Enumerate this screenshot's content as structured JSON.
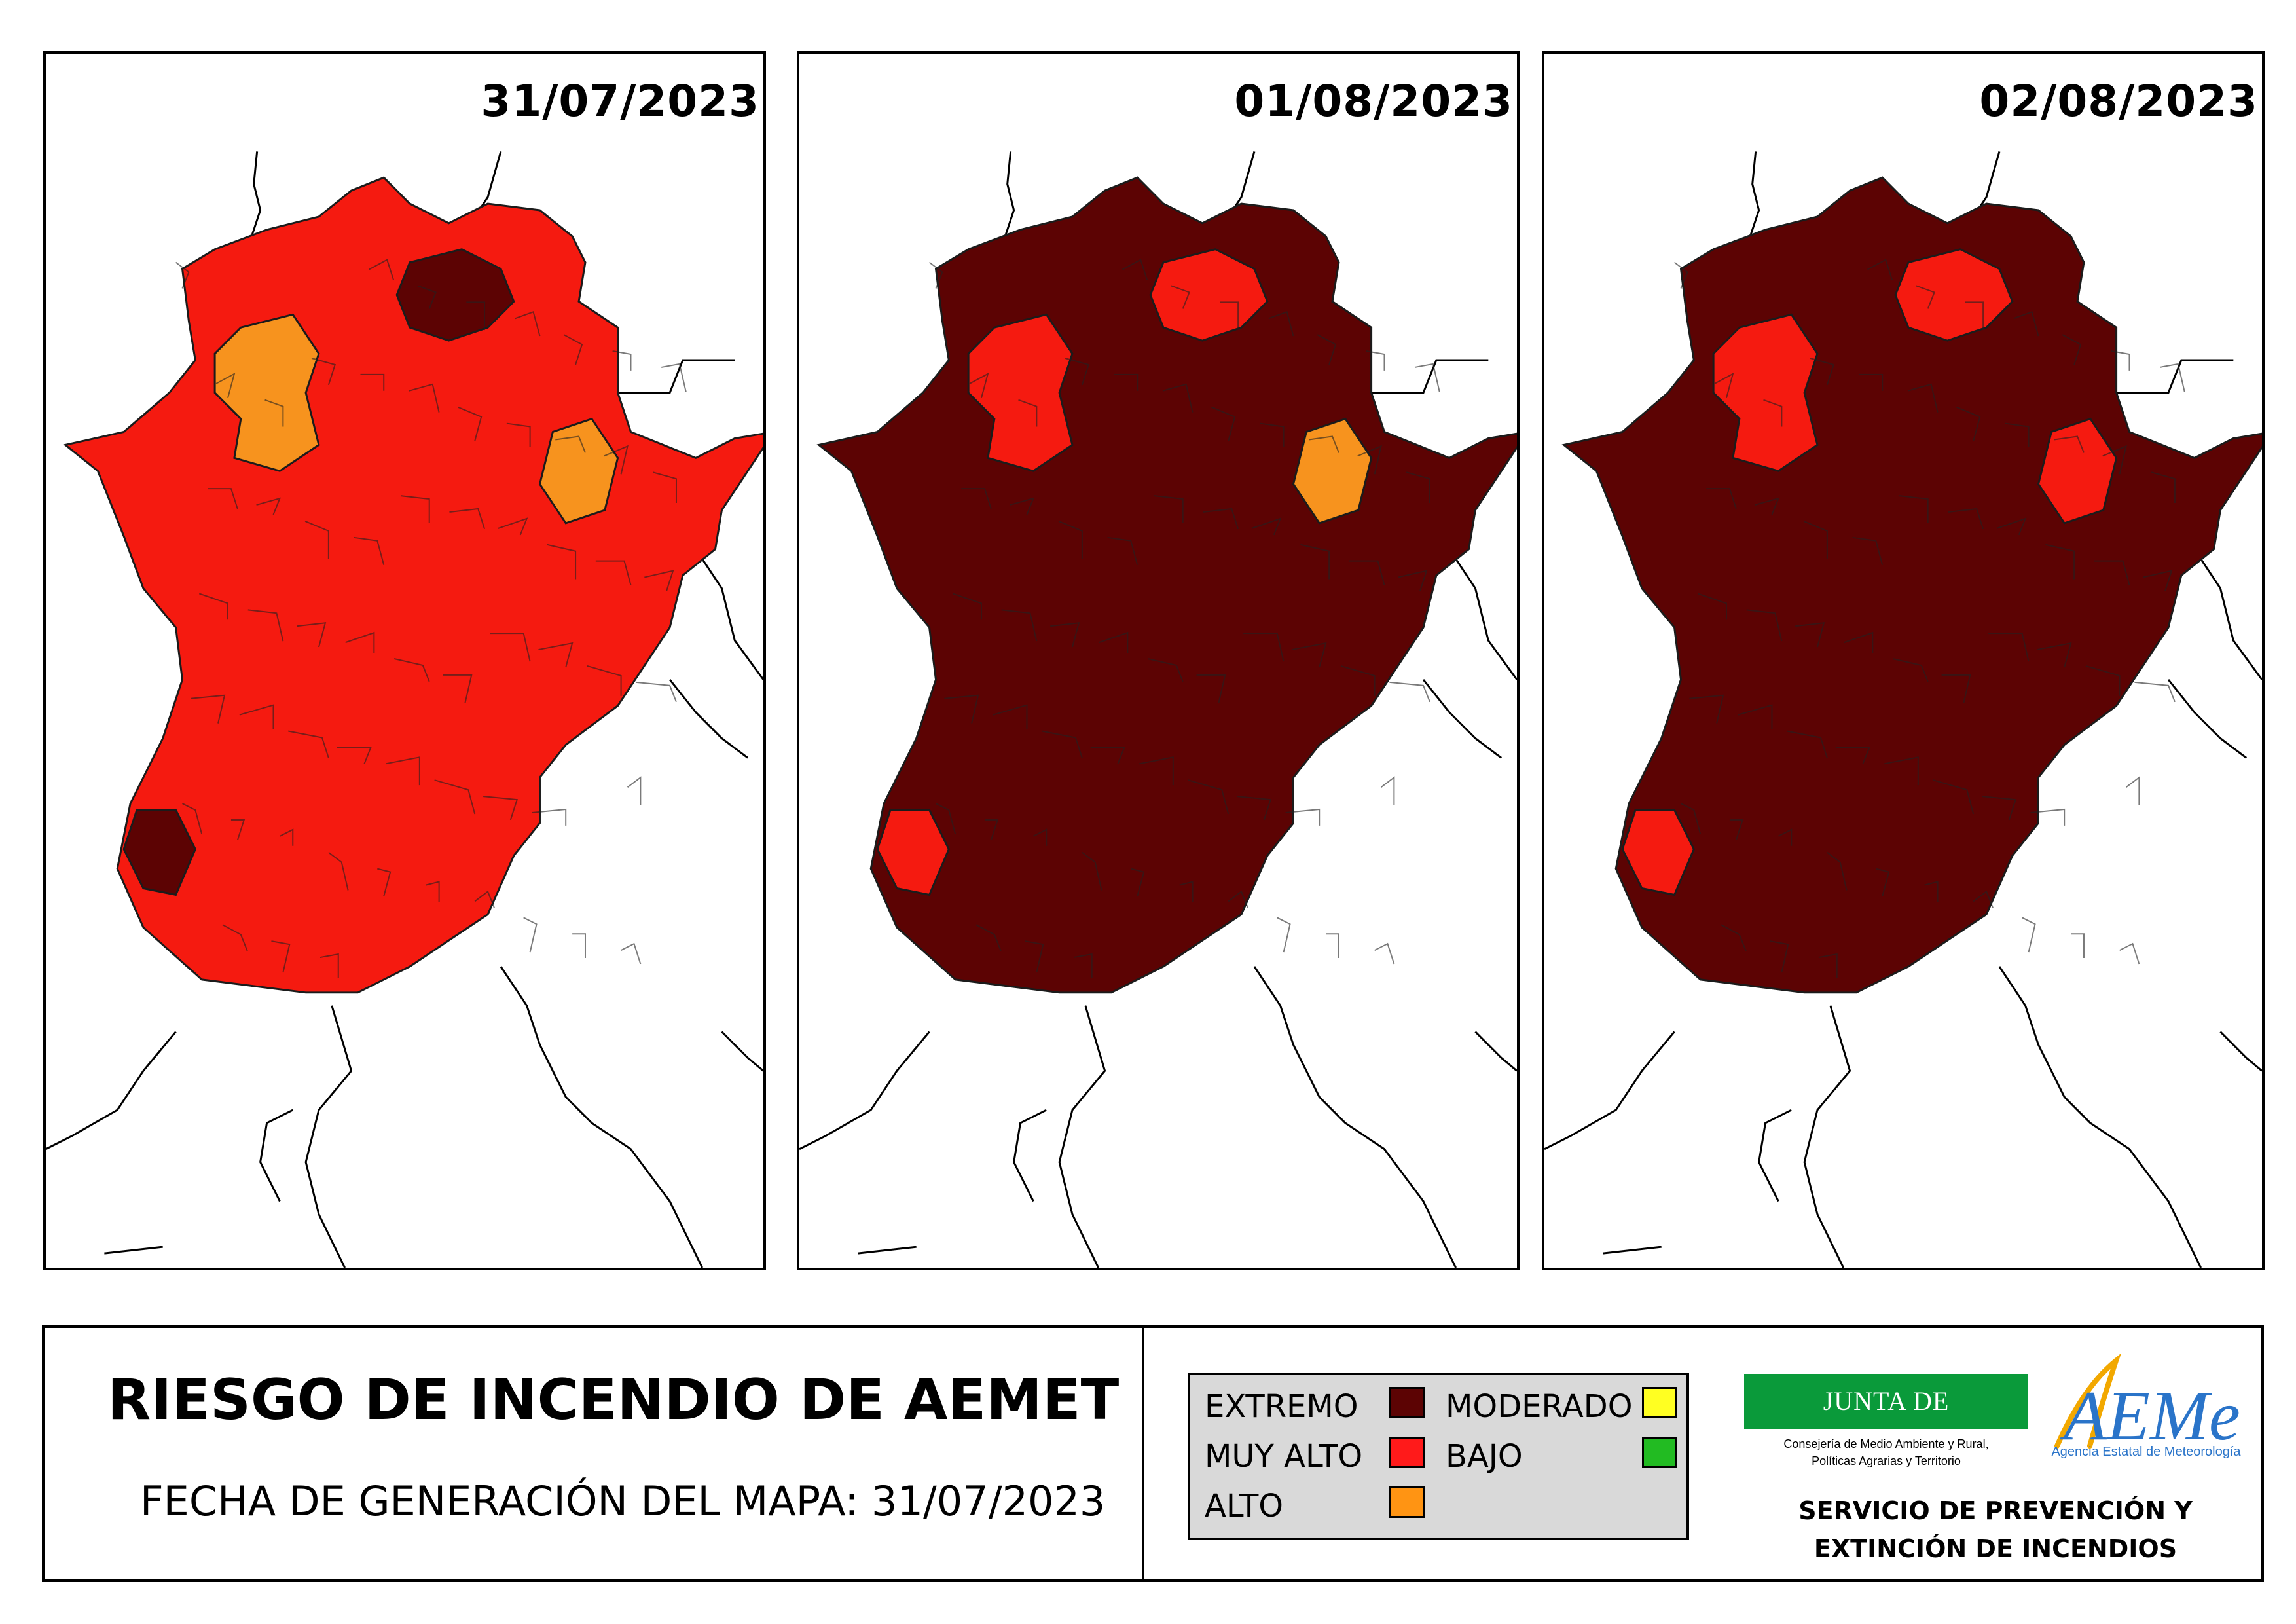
{
  "maps": [
    {
      "date": "31/07/2023",
      "fill": "red",
      "accents": [
        "orange",
        "dark",
        "dark",
        "orange"
      ]
    },
    {
      "date": "01/08/2023",
      "fill": "dark",
      "accents": [
        "red",
        "red",
        "red",
        "orange"
      ]
    },
    {
      "date": "02/08/2023",
      "fill": "dark",
      "accents": [
        "red",
        "red",
        "red",
        "red"
      ]
    }
  ],
  "title": "RIESGO DE INCENDIO DE AEMET",
  "generation_label": "FECHA DE GENERACIÓN DEL MAPA: 31/07/2023",
  "legend": [
    {
      "label": "EXTREMO",
      "color": "#5c0303"
    },
    {
      "label": "MUY ALTO",
      "color": "#ff1a1a"
    },
    {
      "label": "ALTO",
      "color": "#ff9413"
    },
    {
      "label": "MODERADO",
      "color": "#ffff22"
    },
    {
      "label": "BAJO",
      "color": "#22bb22"
    }
  ],
  "colors": {
    "dark": "#5c0303",
    "red": "#f51a10",
    "orange": "#f7931e"
  },
  "junta": {
    "name": "JUNTA DE EXTREMADURA",
    "line1": "Consejería de Medio Ambiente y Rural,",
    "line2": "Políticas Agrarias y Territorio"
  },
  "aemet": {
    "logo": "AEMet",
    "subtitle": "Agencia Estatal de Meteorología"
  },
  "service": {
    "line1": "SERVICIO DE PREVENCIÓN Y",
    "line2": "EXTINCIÓN DE INCENDIOS"
  }
}
